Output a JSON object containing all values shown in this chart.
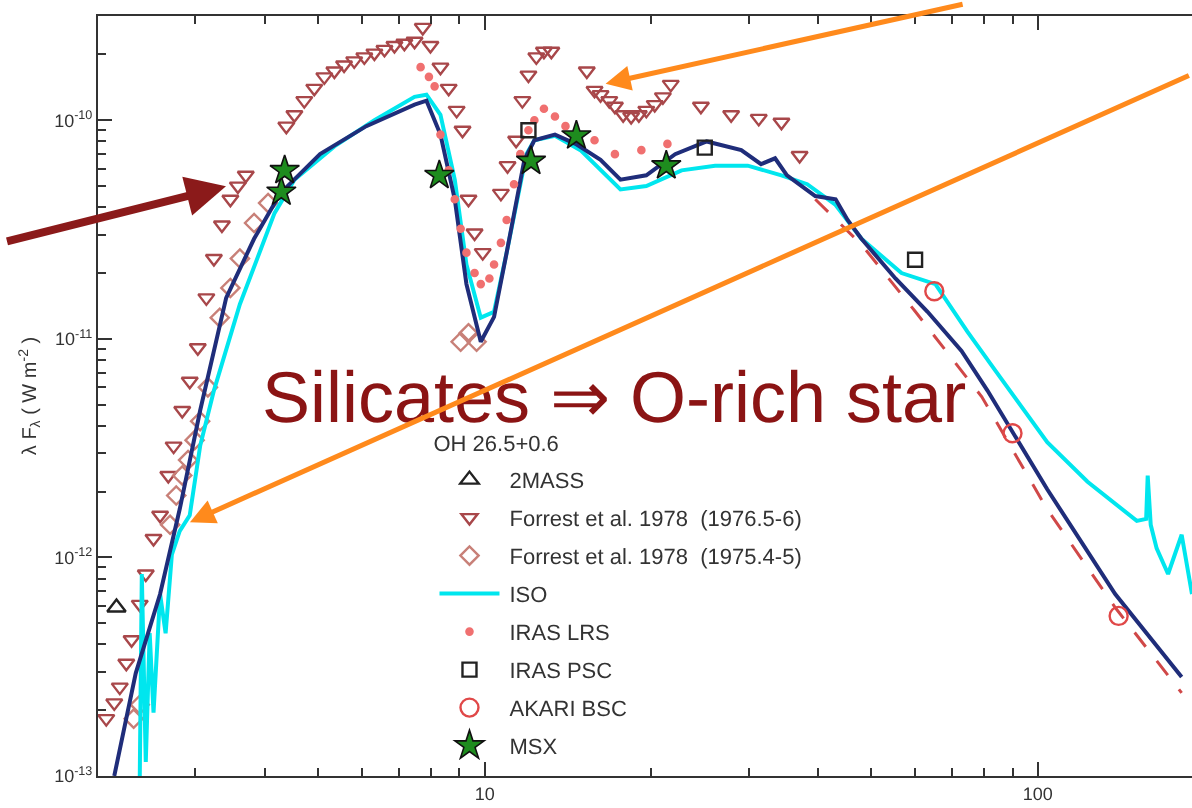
{
  "chart_data": {
    "type": "scatter",
    "log": "xy",
    "ylabel": "λ F$_{λ}$ ( W m$^{-2}$ )",
    "legend_title": "OH 26.5+0.6",
    "legend": "bottom left",
    "xlim": [
      2,
      190
    ],
    "ylim": [
      1e-13,
      3e-10
    ],
    "xticks": [
      {
        "value": 2,
        "label": null
      },
      {
        "value": 3,
        "label": null
      },
      {
        "value": 4,
        "label": null
      },
      {
        "value": 5,
        "label": null
      },
      {
        "value": 6,
        "label": null
      },
      {
        "value": 7,
        "label": null
      },
      {
        "value": 8,
        "label": null
      },
      {
        "value": 9,
        "label": null
      },
      10,
      {
        "value": 20,
        "label": null
      },
      {
        "value": 30,
        "label": null
      },
      {
        "value": 40,
        "label": null
      },
      {
        "value": 50,
        "label": null
      },
      {
        "value": 60,
        "label": null
      },
      {
        "value": 70,
        "label": null
      },
      {
        "value": 80,
        "label": null
      },
      {
        "value": 90,
        "label": null
      },
      100
    ],
    "yticks": [
      {
        "value": 1e-13,
        "label": "10$^{-13}$"
      },
      {
        "value": 2e-13,
        "label": null
      },
      {
        "value": 3e-13,
        "label": null
      },
      {
        "value": 4e-13,
        "label": null
      },
      {
        "value": 5e-13,
        "label": null
      },
      {
        "value": 6e-13,
        "label": null
      },
      {
        "value": 7e-13,
        "label": null
      },
      {
        "value": 8e-13,
        "label": null
      },
      {
        "value": 9e-13,
        "label": null
      },
      {
        "value": 1e-12,
        "label": "10$^{-12}$"
      },
      {
        "value": 2e-12,
        "label": null
      },
      {
        "value": 3e-12,
        "label": null
      },
      {
        "value": 4e-12,
        "label": null
      },
      {
        "value": 5e-12,
        "label": null
      },
      {
        "value": 6e-12,
        "label": null
      },
      {
        "value": 7e-12,
        "label": null
      },
      {
        "value": 8e-12,
        "label": null
      },
      {
        "value": 9e-12,
        "label": null
      },
      {
        "value": 1e-11,
        "label": "10$^{-11}$"
      },
      {
        "value": 2e-11,
        "label": null
      },
      {
        "value": 3e-11,
        "label": null
      },
      {
        "value": 4e-11,
        "label": null
      },
      {
        "value": 5e-11,
        "label": null
      },
      {
        "value": 6e-11,
        "label": null
      },
      {
        "value": 7e-11,
        "label": null
      },
      {
        "value": 8e-11,
        "label": null
      },
      {
        "value": 9e-11,
        "label": null
      },
      {
        "value": 1e-10,
        "label": "10$^{-10}$"
      },
      {
        "value": 2e-10,
        "label": null
      },
      {
        "value": 3e-10,
        "label": null
      }
    ],
    "annotations": [
      "Silicates ⇒ O-rich star"
    ],
    "series": [
      {
        "name": "2MASS",
        "marker": "triangle",
        "color": "#222222",
        "x": [
          2.16
        ],
        "values": [
          5.9e-13
        ]
      },
      {
        "name": "Forrest et al. 1978  (1976.5-6)",
        "marker": "triangle-down",
        "color": "#a8474a",
        "x": [
          2.07,
          2.14,
          2.19,
          2.25,
          2.3,
          2.38,
          2.44,
          2.52,
          2.59,
          2.68,
          2.74,
          2.84,
          2.93,
          3.03,
          3.14,
          3.24,
          3.35,
          3.47,
          3.58,
          3.7,
          4.38,
          4.53,
          4.72,
          4.92,
          5.13,
          5.35,
          5.57,
          5.81,
          6.06,
          6.32,
          6.59,
          6.87,
          7.16,
          7.47,
          7.73,
          7.98,
          8.32,
          8.61,
          8.9,
          9.12,
          9.35,
          9.59,
          9.92,
          10.7,
          11.0,
          11.4,
          11.7,
          12.0,
          12.4,
          12.8,
          13.2,
          15.3,
          15.8,
          16.2,
          16.8,
          17.2,
          17.8,
          18.4,
          19.0,
          19.6,
          20.3,
          21.0,
          21.7,
          24.6,
          27.9,
          31.3,
          34.4,
          37.1
        ],
        "values": [
          1.83e-13,
          2.16e-13,
          2.55e-13,
          3.28e-13,
          4.2e-13,
          6.1e-13,
          8.4e-13,
          1.22e-12,
          1.56e-12,
          2.37e-12,
          3.23e-12,
          4.7e-12,
          6.4e-12,
          9.1e-12,
          1.54e-11,
          2.33e-11,
          3.32e-11,
          4.35e-11,
          5e-11,
          5.6e-11,
          9.4e-11,
          1.06e-10,
          1.23e-10,
          1.4e-10,
          1.58e-10,
          1.68e-10,
          1.79e-10,
          1.87e-10,
          1.95e-10,
          2.03e-10,
          2.11e-10,
          2.2e-10,
          2.25e-10,
          2.3e-10,
          2.66e-10,
          2.2e-10,
          1.75e-10,
          1.4e-10,
          1.11e-10,
          9e-11,
          4.35e-11,
          3.05e-11,
          2.48e-11,
          4.63e-11,
          6.2e-11,
          8.1e-11,
          1.23e-10,
          1.61e-10,
          1.95e-10,
          2.07e-10,
          2.07e-10,
          1.68e-10,
          1.37e-10,
          1.31e-10,
          1.23e-10,
          1.16e-10,
          1.06e-10,
          1.04e-10,
          1.06e-10,
          1.11e-10,
          1.18e-10,
          1.28e-10,
          1.46e-10,
          1.16e-10,
          1.06e-10,
          1.02e-10,
          9.8e-11,
          6.9e-11
        ]
      },
      {
        "name": "Forrest et al. 1978  (1975.4-5)",
        "marker": "diamond",
        "color": "#c88078",
        "x": [
          2.32,
          2.38,
          2.7,
          2.77,
          2.84,
          2.91,
          2.99,
          3.06,
          3.16,
          3.32,
          3.47,
          3.61,
          3.83,
          4.06,
          9.05,
          9.35,
          9.67
        ],
        "values": [
          1.83e-13,
          2.12e-13,
          1.41e-12,
          1.92e-12,
          2.37e-12,
          2.79e-12,
          3.44e-12,
          4.2e-12,
          6e-12,
          1.25e-11,
          1.71e-11,
          2.33e-11,
          3.39e-11,
          4.18e-11,
          9.7e-12,
          1.06e-11,
          9.7e-12
        ]
      },
      {
        "name": "ISO",
        "type": "line",
        "color": "#00e6ee",
        "x": [
          2.38,
          2.4,
          2.44,
          2.48,
          2.52,
          2.59,
          2.65,
          2.72,
          2.81,
          2.93,
          3.06,
          3.24,
          3.61,
          4.17,
          4.53,
          5.35,
          6.32,
          7.47,
          7.85,
          8.32,
          8.83,
          9.27,
          9.84,
          10.4,
          10.96,
          11.9,
          12.3,
          13.4,
          14.9,
          17.6,
          19.6,
          22.7,
          26.1,
          29.9,
          34.4,
          38.3,
          43.1,
          48.0,
          56.7,
          65.3,
          74.6,
          84.0,
          104,
          123,
          151,
          157,
          158,
          160,
          164,
          172,
          182,
          190
        ],
        "values": [
          1e-13,
          8.4e-13,
          1.16e-13,
          4.5e-13,
          1.95e-13,
          6.8e-13,
          4.5e-13,
          1.03e-12,
          1.32e-12,
          1.56e-12,
          3.24e-12,
          5.8e-12,
          1.44e-11,
          3.76e-11,
          5.35e-11,
          7.6e-11,
          1e-10,
          1.28e-10,
          1.31e-10,
          1.06e-10,
          5.35e-11,
          2.19e-11,
          1.25e-11,
          1.33e-11,
          2.48e-11,
          7e-11,
          8.1e-11,
          8.5e-11,
          7.3e-11,
          4.83e-11,
          5e-11,
          5.9e-11,
          6.2e-11,
          6.2e-11,
          5.6e-11,
          5.1e-11,
          4.1e-11,
          2.87e-11,
          2e-11,
          1.78e-11,
          1.08e-11,
          7.1e-12,
          3.37e-12,
          2.22e-12,
          1.47e-12,
          1.5e-12,
          2.37e-12,
          1.41e-12,
          1.1e-12,
          8.4e-13,
          1.27e-12,
          6.8e-13
        ]
      },
      {
        "type": "line",
        "color": "#1f2d7a",
        "x": [
          2.14,
          2.34,
          2.59,
          2.81,
          3.06,
          3.41,
          3.83,
          4.27,
          5.04,
          6.11,
          7.47,
          7.85,
          8.32,
          8.83,
          9.27,
          9.84,
          10.4,
          10.96,
          11.8,
          12.3,
          13.4,
          14.6,
          16.2,
          17.6,
          19.6,
          22.1,
          25.2,
          29.1,
          31.6,
          33.5,
          35.2,
          39.6,
          43.1,
          45.3,
          48.0,
          55.3,
          63.2,
          72.8,
          81.1,
          104,
          138,
          182
        ],
        "values": [
          1e-13,
          2.95e-13,
          6.8e-13,
          1.66e-12,
          4.7e-12,
          1.54e-11,
          2.87e-11,
          4.63e-11,
          7e-11,
          9.4e-11,
          1.18e-10,
          1.23e-10,
          8.6e-11,
          4.35e-11,
          1.78e-11,
          9.7e-12,
          1.26e-11,
          2.48e-11,
          6.6e-11,
          8.1e-11,
          8.6e-11,
          7.8e-11,
          6.6e-11,
          5.35e-11,
          5.6e-11,
          7e-11,
          8e-11,
          7.3e-11,
          6.3e-11,
          6.7e-11,
          5.6e-11,
          4.5e-11,
          4.35e-11,
          3.5e-11,
          2.87e-11,
          1.89e-11,
          1.33e-11,
          8.8e-12,
          5.8e-12,
          2.05e-12,
          6.8e-13,
          2.84e-13
        ]
      },
      {
        "type": "line",
        "line_style": "dashed",
        "color": "#d04848",
        "x": [
          39.6,
          48.0,
          60.1,
          79.2,
          104,
          138,
          182
        ],
        "values": [
          4.35e-11,
          2.7e-11,
          1.33e-11,
          5.43e-12,
          1.66e-12,
          5.9e-13,
          2.4e-13
        ]
      },
      {
        "name": "IRAS LRS",
        "marker": "point",
        "color": "#f07070",
        "x": [
          7.66,
          7.93,
          8.12,
          8.32,
          8.61,
          8.83,
          9.05,
          9.27,
          9.59,
          9.84,
          10.2,
          10.4,
          10.7,
          10.96,
          11.3,
          11.6,
          12.0,
          12.3,
          12.8,
          13.4,
          14.0,
          15.8,
          17.2,
          19.2,
          21.4
        ],
        "values": [
          1.75e-10,
          1.58e-10,
          1.43e-10,
          8.6e-11,
          5.9e-11,
          4.35e-11,
          3.19e-11,
          2.48e-11,
          2e-11,
          1.78e-11,
          1.89e-11,
          2.19e-11,
          2.75e-11,
          3.5e-11,
          5.1e-11,
          7e-11,
          9e-11,
          1e-10,
          1.13e-10,
          1.04e-10,
          9.4e-11,
          8.1e-11,
          7e-11,
          7.3e-11,
          7.8e-11
        ]
      },
      {
        "name": "IRAS PSC",
        "marker": "square",
        "color": "#222222",
        "x": [
          12,
          25,
          60
        ],
        "values": [
          9e-11,
          7.5e-11,
          2.3e-11
        ]
      },
      {
        "name": "AKARI BSC",
        "marker": "circle",
        "color": "#e04848",
        "x": [
          65,
          90,
          140
        ],
        "values": [
          1.65e-11,
          3.7e-12,
          5.4e-13
        ]
      },
      {
        "name": "MSX",
        "marker": "star",
        "color": "#1e8c1e",
        "x": [
          4.29,
          4.35,
          8.28,
          12.13,
          14.65,
          21.3
        ],
        "values": [
          4.7e-11,
          5.9e-11,
          5.6e-11,
          6.5e-11,
          8.5e-11,
          6.2e-11
        ]
      }
    ]
  }
}
